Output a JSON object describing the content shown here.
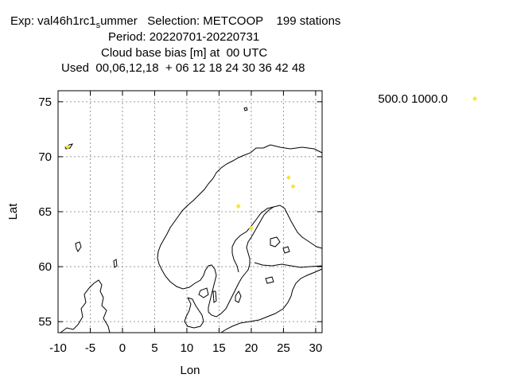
{
  "header": {
    "line1_prefix": "Exp: val46h1rc1",
    "line1_sub": "s",
    "line1_suffix": "ummer   Selection: METCOOP    199 stations",
    "line2": "Period: 20220701-20220731",
    "line3": "Cloud base bias [m] at  00 UTC",
    "line4": "Used  00,06,12,18  + 06 12 18 24 30 36 42 48"
  },
  "chart_data": {
    "type": "scatter",
    "xlabel": "Lon",
    "ylabel": "Lat",
    "xlim": [
      -10,
      31
    ],
    "ylim": [
      54,
      76
    ],
    "xticks": [
      -10,
      -5,
      0,
      5,
      10,
      15,
      20,
      25,
      30
    ],
    "yticks": [
      55,
      60,
      65,
      70,
      75
    ],
    "grid": true,
    "legend_placement": "top-right outside",
    "series": [
      {
        "name": "500.0 1000.0",
        "color": "#f5e342",
        "marker": "diamond",
        "points": [
          {
            "x": -8.5,
            "y": 70.9
          },
          {
            "x": 18.0,
            "y": 65.5
          },
          {
            "x": 25.8,
            "y": 68.1
          },
          {
            "x": 26.5,
            "y": 67.3
          },
          {
            "x": 20.0,
            "y": 63.5
          }
        ]
      }
    ]
  }
}
